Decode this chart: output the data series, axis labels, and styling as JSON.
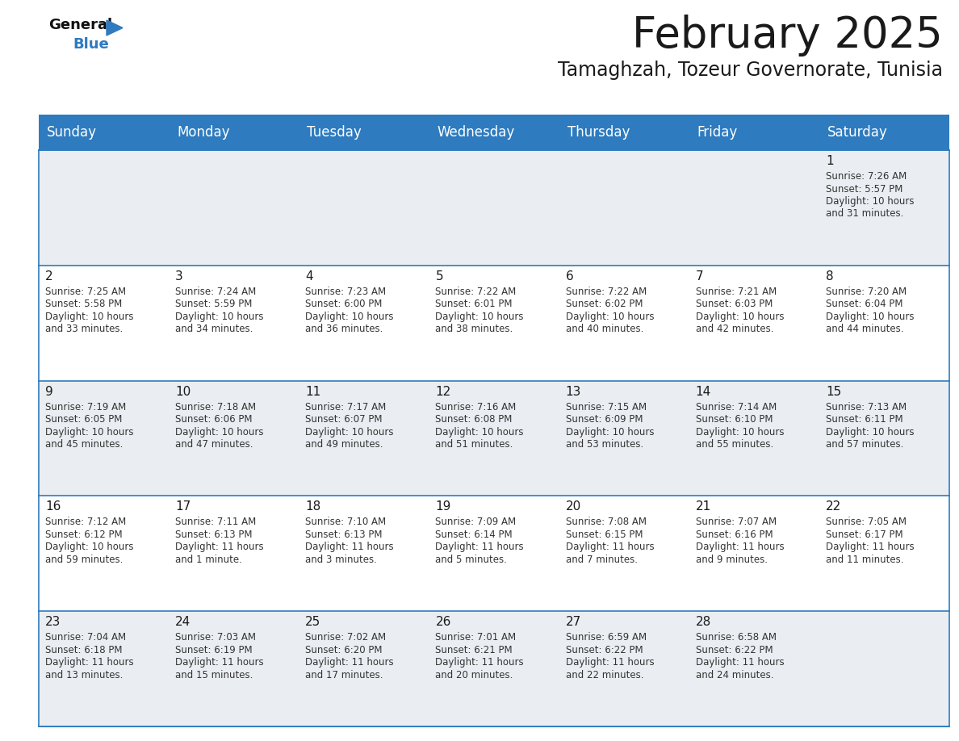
{
  "title": "February 2025",
  "subtitle": "Tamaghzah, Tozeur Governorate, Tunisia",
  "header_color": "#2E7BBF",
  "header_text_color": "#FFFFFF",
  "background_color": "#FFFFFF",
  "cell_bg_odd": "#EAEEF2",
  "cell_bg_even": "#FFFFFF",
  "border_color": "#2E7BBF",
  "day_names": [
    "Sunday",
    "Monday",
    "Tuesday",
    "Wednesday",
    "Thursday",
    "Friday",
    "Saturday"
  ],
  "title_fontsize": 38,
  "subtitle_fontsize": 17,
  "header_fontsize": 12,
  "day_num_fontsize": 11,
  "info_fontsize": 8.5,
  "logo_color1": "#111111",
  "logo_color2": "#2E7BBF",
  "logo_triangle_color": "#2E7BBF",
  "calendar_data": {
    "1": {
      "sunrise": "7:26 AM",
      "sunset": "5:57 PM",
      "daylight_line1": "Daylight: 10 hours",
      "daylight_line2": "and 31 minutes."
    },
    "2": {
      "sunrise": "7:25 AM",
      "sunset": "5:58 PM",
      "daylight_line1": "Daylight: 10 hours",
      "daylight_line2": "and 33 minutes."
    },
    "3": {
      "sunrise": "7:24 AM",
      "sunset": "5:59 PM",
      "daylight_line1": "Daylight: 10 hours",
      "daylight_line2": "and 34 minutes."
    },
    "4": {
      "sunrise": "7:23 AM",
      "sunset": "6:00 PM",
      "daylight_line1": "Daylight: 10 hours",
      "daylight_line2": "and 36 minutes."
    },
    "5": {
      "sunrise": "7:22 AM",
      "sunset": "6:01 PM",
      "daylight_line1": "Daylight: 10 hours",
      "daylight_line2": "and 38 minutes."
    },
    "6": {
      "sunrise": "7:22 AM",
      "sunset": "6:02 PM",
      "daylight_line1": "Daylight: 10 hours",
      "daylight_line2": "and 40 minutes."
    },
    "7": {
      "sunrise": "7:21 AM",
      "sunset": "6:03 PM",
      "daylight_line1": "Daylight: 10 hours",
      "daylight_line2": "and 42 minutes."
    },
    "8": {
      "sunrise": "7:20 AM",
      "sunset": "6:04 PM",
      "daylight_line1": "Daylight: 10 hours",
      "daylight_line2": "and 44 minutes."
    },
    "9": {
      "sunrise": "7:19 AM",
      "sunset": "6:05 PM",
      "daylight_line1": "Daylight: 10 hours",
      "daylight_line2": "and 45 minutes."
    },
    "10": {
      "sunrise": "7:18 AM",
      "sunset": "6:06 PM",
      "daylight_line1": "Daylight: 10 hours",
      "daylight_line2": "and 47 minutes."
    },
    "11": {
      "sunrise": "7:17 AM",
      "sunset": "6:07 PM",
      "daylight_line1": "Daylight: 10 hours",
      "daylight_line2": "and 49 minutes."
    },
    "12": {
      "sunrise": "7:16 AM",
      "sunset": "6:08 PM",
      "daylight_line1": "Daylight: 10 hours",
      "daylight_line2": "and 51 minutes."
    },
    "13": {
      "sunrise": "7:15 AM",
      "sunset": "6:09 PM",
      "daylight_line1": "Daylight: 10 hours",
      "daylight_line2": "and 53 minutes."
    },
    "14": {
      "sunrise": "7:14 AM",
      "sunset": "6:10 PM",
      "daylight_line1": "Daylight: 10 hours",
      "daylight_line2": "and 55 minutes."
    },
    "15": {
      "sunrise": "7:13 AM",
      "sunset": "6:11 PM",
      "daylight_line1": "Daylight: 10 hours",
      "daylight_line2": "and 57 minutes."
    },
    "16": {
      "sunrise": "7:12 AM",
      "sunset": "6:12 PM",
      "daylight_line1": "Daylight: 10 hours",
      "daylight_line2": "and 59 minutes."
    },
    "17": {
      "sunrise": "7:11 AM",
      "sunset": "6:13 PM",
      "daylight_line1": "Daylight: 11 hours",
      "daylight_line2": "and 1 minute."
    },
    "18": {
      "sunrise": "7:10 AM",
      "sunset": "6:13 PM",
      "daylight_line1": "Daylight: 11 hours",
      "daylight_line2": "and 3 minutes."
    },
    "19": {
      "sunrise": "7:09 AM",
      "sunset": "6:14 PM",
      "daylight_line1": "Daylight: 11 hours",
      "daylight_line2": "and 5 minutes."
    },
    "20": {
      "sunrise": "7:08 AM",
      "sunset": "6:15 PM",
      "daylight_line1": "Daylight: 11 hours",
      "daylight_line2": "and 7 minutes."
    },
    "21": {
      "sunrise": "7:07 AM",
      "sunset": "6:16 PM",
      "daylight_line1": "Daylight: 11 hours",
      "daylight_line2": "and 9 minutes."
    },
    "22": {
      "sunrise": "7:05 AM",
      "sunset": "6:17 PM",
      "daylight_line1": "Daylight: 11 hours",
      "daylight_line2": "and 11 minutes."
    },
    "23": {
      "sunrise": "7:04 AM",
      "sunset": "6:18 PM",
      "daylight_line1": "Daylight: 11 hours",
      "daylight_line2": "and 13 minutes."
    },
    "24": {
      "sunrise": "7:03 AM",
      "sunset": "6:19 PM",
      "daylight_line1": "Daylight: 11 hours",
      "daylight_line2": "and 15 minutes."
    },
    "25": {
      "sunrise": "7:02 AM",
      "sunset": "6:20 PM",
      "daylight_line1": "Daylight: 11 hours",
      "daylight_line2": "and 17 minutes."
    },
    "26": {
      "sunrise": "7:01 AM",
      "sunset": "6:21 PM",
      "daylight_line1": "Daylight: 11 hours",
      "daylight_line2": "and 20 minutes."
    },
    "27": {
      "sunrise": "6:59 AM",
      "sunset": "6:22 PM",
      "daylight_line1": "Daylight: 11 hours",
      "daylight_line2": "and 22 minutes."
    },
    "28": {
      "sunrise": "6:58 AM",
      "sunset": "6:22 PM",
      "daylight_line1": "Daylight: 11 hours",
      "daylight_line2": "and 24 minutes."
    }
  },
  "first_weekday": 6,
  "num_days": 28
}
